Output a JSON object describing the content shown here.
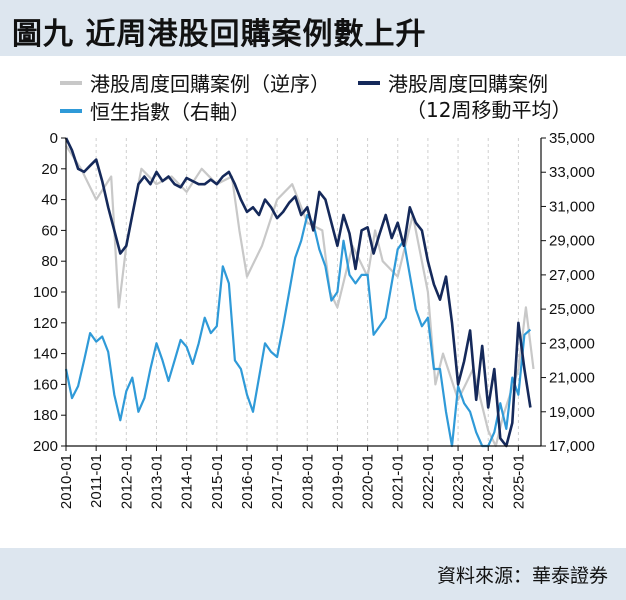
{
  "header": {
    "title": "圖九 近周港股回購案例數上升"
  },
  "legend": {
    "items": [
      {
        "label": "港股周度回購案例（逆序）",
        "color": "#c8c8c8"
      },
      {
        "label": "港股周度回購案例",
        "sublabel": "（12周移動平均）",
        "color": "#15295a"
      },
      {
        "label": "恒生指數（右軸）",
        "color": "#2f9ad8"
      }
    ]
  },
  "footer": {
    "source": "資料來源：華泰證券"
  },
  "chart_data": {
    "type": "line",
    "x_ticks": [
      "2010-01",
      "2011-01",
      "2012-01",
      "2013-01",
      "2014-01",
      "2015-01",
      "2016-01",
      "2017-01",
      "2018-01",
      "2019-01",
      "2020-01",
      "2021-01",
      "2022-01",
      "2023-01",
      "2024-01",
      "2025-01"
    ],
    "y_left": {
      "reversed": true,
      "ylim": [
        0,
        200
      ],
      "ticks": [
        0,
        20,
        40,
        60,
        80,
        100,
        120,
        140,
        160,
        180,
        200
      ]
    },
    "y_right": {
      "ylim": [
        17000,
        35000
      ],
      "ticks": [
        "17,000",
        "19,000",
        "21,000",
        "23,000",
        "25,000",
        "27,000",
        "29,000",
        "31,000",
        "33,000",
        "35,000"
      ],
      "tick_values": [
        17000,
        19000,
        21000,
        23000,
        25000,
        27000,
        29000,
        31000,
        33000,
        35000
      ]
    },
    "series": [
      {
        "name": "港股周度回購案例（逆序）",
        "axis": "left",
        "color": "#c8c8c8",
        "x": [
          2010.0,
          2010.5,
          2011.0,
          2011.5,
          2011.75,
          2012.0,
          2012.5,
          2013.0,
          2013.5,
          2014.0,
          2014.5,
          2015.0,
          2015.5,
          2015.75,
          2016.0,
          2016.5,
          2017.0,
          2017.5,
          2018.0,
          2018.5,
          2018.75,
          2019.0,
          2019.5,
          2020.0,
          2020.25,
          2020.5,
          2021.0,
          2021.5,
          2022.0,
          2022.25,
          2022.5,
          2023.0,
          2023.5,
          2024.0,
          2024.25,
          2024.5,
          2025.0,
          2025.25,
          2025.5
        ],
        "values": [
          5,
          20,
          40,
          25,
          110,
          70,
          20,
          30,
          25,
          35,
          20,
          30,
          25,
          60,
          90,
          70,
          40,
          30,
          55,
          60,
          100,
          110,
          70,
          90,
          60,
          80,
          90,
          50,
          100,
          160,
          140,
          170,
          150,
          190,
          200,
          180,
          150,
          110,
          150
        ]
      },
      {
        "name": "港股周度回購案例",
        "sublabel": "（12周移動平均）",
        "axis": "left",
        "color": "#15295a",
        "x": [
          2010.0,
          2010.2,
          2010.4,
          2010.6,
          2010.8,
          2011.0,
          2011.2,
          2011.4,
          2011.6,
          2011.8,
          2012.0,
          2012.2,
          2012.4,
          2012.6,
          2012.8,
          2013.0,
          2013.2,
          2013.4,
          2013.6,
          2013.8,
          2014.0,
          2014.2,
          2014.4,
          2014.6,
          2014.8,
          2015.0,
          2015.2,
          2015.4,
          2015.6,
          2015.8,
          2016.0,
          2016.2,
          2016.4,
          2016.6,
          2016.8,
          2017.0,
          2017.2,
          2017.4,
          2017.6,
          2017.8,
          2018.0,
          2018.2,
          2018.4,
          2018.6,
          2018.8,
          2019.0,
          2019.2,
          2019.4,
          2019.6,
          2019.8,
          2020.0,
          2020.2,
          2020.4,
          2020.6,
          2020.8,
          2021.0,
          2021.2,
          2021.4,
          2021.6,
          2021.8,
          2022.0,
          2022.2,
          2022.4,
          2022.6,
          2022.8,
          2023.0,
          2023.2,
          2023.4,
          2023.6,
          2023.8,
          2024.0,
          2024.2,
          2024.4,
          2024.6,
          2024.8,
          2025.0,
          2025.2,
          2025.4
        ],
        "values": [
          0,
          8,
          20,
          22,
          18,
          14,
          28,
          45,
          60,
          75,
          70,
          50,
          30,
          25,
          30,
          22,
          28,
          25,
          30,
          32,
          26,
          28,
          30,
          30,
          27,
          30,
          25,
          22,
          30,
          40,
          48,
          45,
          50,
          40,
          45,
          52,
          48,
          42,
          38,
          50,
          45,
          60,
          35,
          40,
          55,
          70,
          50,
          62,
          85,
          60,
          58,
          75,
          62,
          50,
          65,
          55,
          70,
          45,
          55,
          60,
          80,
          95,
          105,
          90,
          120,
          160,
          145,
          125,
          170,
          135,
          175,
          150,
          195,
          200,
          185,
          120,
          150,
          175
        ]
      },
      {
        "name": "恒生指數（右軸）",
        "axis": "right",
        "color": "#2f9ad8",
        "x": [
          2010.0,
          2010.2,
          2010.4,
          2010.6,
          2010.8,
          2011.0,
          2011.2,
          2011.4,
          2011.6,
          2011.8,
          2012.0,
          2012.2,
          2012.4,
          2012.6,
          2012.8,
          2013.0,
          2013.2,
          2013.4,
          2013.6,
          2013.8,
          2014.0,
          2014.2,
          2014.4,
          2014.6,
          2014.8,
          2015.0,
          2015.2,
          2015.4,
          2015.6,
          2015.8,
          2016.0,
          2016.2,
          2016.4,
          2016.6,
          2016.8,
          2017.0,
          2017.2,
          2017.4,
          2017.6,
          2017.8,
          2018.0,
          2018.2,
          2018.4,
          2018.6,
          2018.8,
          2019.0,
          2019.2,
          2019.4,
          2019.6,
          2019.8,
          2020.0,
          2020.2,
          2020.4,
          2020.6,
          2020.8,
          2021.0,
          2021.2,
          2021.4,
          2021.6,
          2021.8,
          2022.0,
          2022.2,
          2022.4,
          2022.6,
          2022.8,
          2023.0,
          2023.2,
          2023.4,
          2023.6,
          2023.8,
          2024.0,
          2024.2,
          2024.4,
          2024.6,
          2024.8,
          2025.0,
          2025.2,
          2025.4
        ],
        "values": [
          21500,
          19800,
          20500,
          22000,
          23600,
          23100,
          23400,
          22500,
          20000,
          18500,
          20200,
          21000,
          19000,
          19800,
          21500,
          23000,
          22000,
          20800,
          22000,
          23200,
          22800,
          21800,
          23000,
          24500,
          23600,
          24000,
          27500,
          26500,
          22000,
          21500,
          20000,
          19000,
          21000,
          23000,
          22500,
          22200,
          24000,
          26000,
          28000,
          29000,
          30500,
          30000,
          28500,
          27500,
          25500,
          26000,
          29000,
          27000,
          26500,
          27000,
          27000,
          23500,
          24000,
          24500,
          26500,
          28500,
          29000,
          27000,
          25000,
          24000,
          24500,
          21500,
          21500,
          19000,
          16500,
          20500,
          19500,
          19000,
          17800,
          17000,
          16500,
          17800,
          19500,
          18000,
          21000,
          20000,
          23500,
          23800
        ]
      }
    ]
  }
}
